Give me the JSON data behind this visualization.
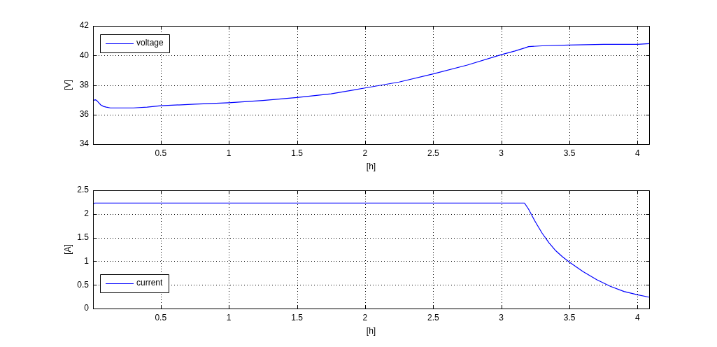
{
  "chart_data": [
    {
      "type": "line",
      "xlabel": "[h]",
      "ylabel": "[V]",
      "xlim": [
        0.003,
        4.085
      ],
      "xticks": [
        0.5,
        1,
        1.5,
        2,
        2.5,
        3,
        3.5,
        4
      ],
      "ylim": [
        34,
        42
      ],
      "yticks": [
        34,
        36,
        38,
        40,
        42
      ],
      "grid": true,
      "legend": "top left",
      "marker": "none",
      "line_style": "solid",
      "x": [
        0.003,
        0.02,
        0.03,
        0.045,
        0.06,
        0.08,
        0.1,
        0.13,
        0.2,
        0.3,
        0.4,
        0.5,
        0.75,
        1.0,
        1.25,
        1.5,
        1.75,
        2.0,
        2.25,
        2.5,
        2.75,
        3.0,
        3.1,
        3.17,
        3.2,
        3.3,
        3.5,
        3.75,
        4.0,
        4.085
      ],
      "series": [
        {
          "name": "voltage",
          "color": "#0000ff",
          "values": [
            36.95,
            37.0,
            36.95,
            36.8,
            36.65,
            36.55,
            36.5,
            36.45,
            36.45,
            36.45,
            36.5,
            36.6,
            36.7,
            36.8,
            36.95,
            37.15,
            37.4,
            37.8,
            38.2,
            38.75,
            39.35,
            40.05,
            40.3,
            40.5,
            40.6,
            40.65,
            40.7,
            40.75,
            40.75,
            40.8
          ]
        }
      ]
    },
    {
      "type": "line",
      "xlabel": "[h]",
      "ylabel": "[A]",
      "xlim": [
        0.003,
        4.085
      ],
      "xticks": [
        0.5,
        1,
        1.5,
        2,
        2.5,
        3,
        3.5,
        4
      ],
      "ylim": [
        0,
        2.5
      ],
      "yticks": [
        0,
        0.5,
        1,
        1.5,
        2,
        2.5
      ],
      "grid": true,
      "legend": "bottom left",
      "marker": "none",
      "line_style": "solid",
      "x": [
        0.003,
        0.015,
        0.5,
        1.0,
        1.5,
        2.0,
        2.5,
        3.0,
        3.17,
        3.2,
        3.25,
        3.3,
        3.35,
        3.4,
        3.45,
        3.5,
        3.6,
        3.7,
        3.8,
        3.9,
        4.0,
        4.085
      ],
      "series": [
        {
          "name": "current",
          "color": "#0000ff",
          "values": [
            2.21,
            2.23,
            2.23,
            2.23,
            2.23,
            2.23,
            2.23,
            2.23,
            2.23,
            2.1,
            1.83,
            1.59,
            1.39,
            1.22,
            1.09,
            0.98,
            0.78,
            0.61,
            0.47,
            0.36,
            0.29,
            0.24
          ]
        }
      ]
    }
  ]
}
